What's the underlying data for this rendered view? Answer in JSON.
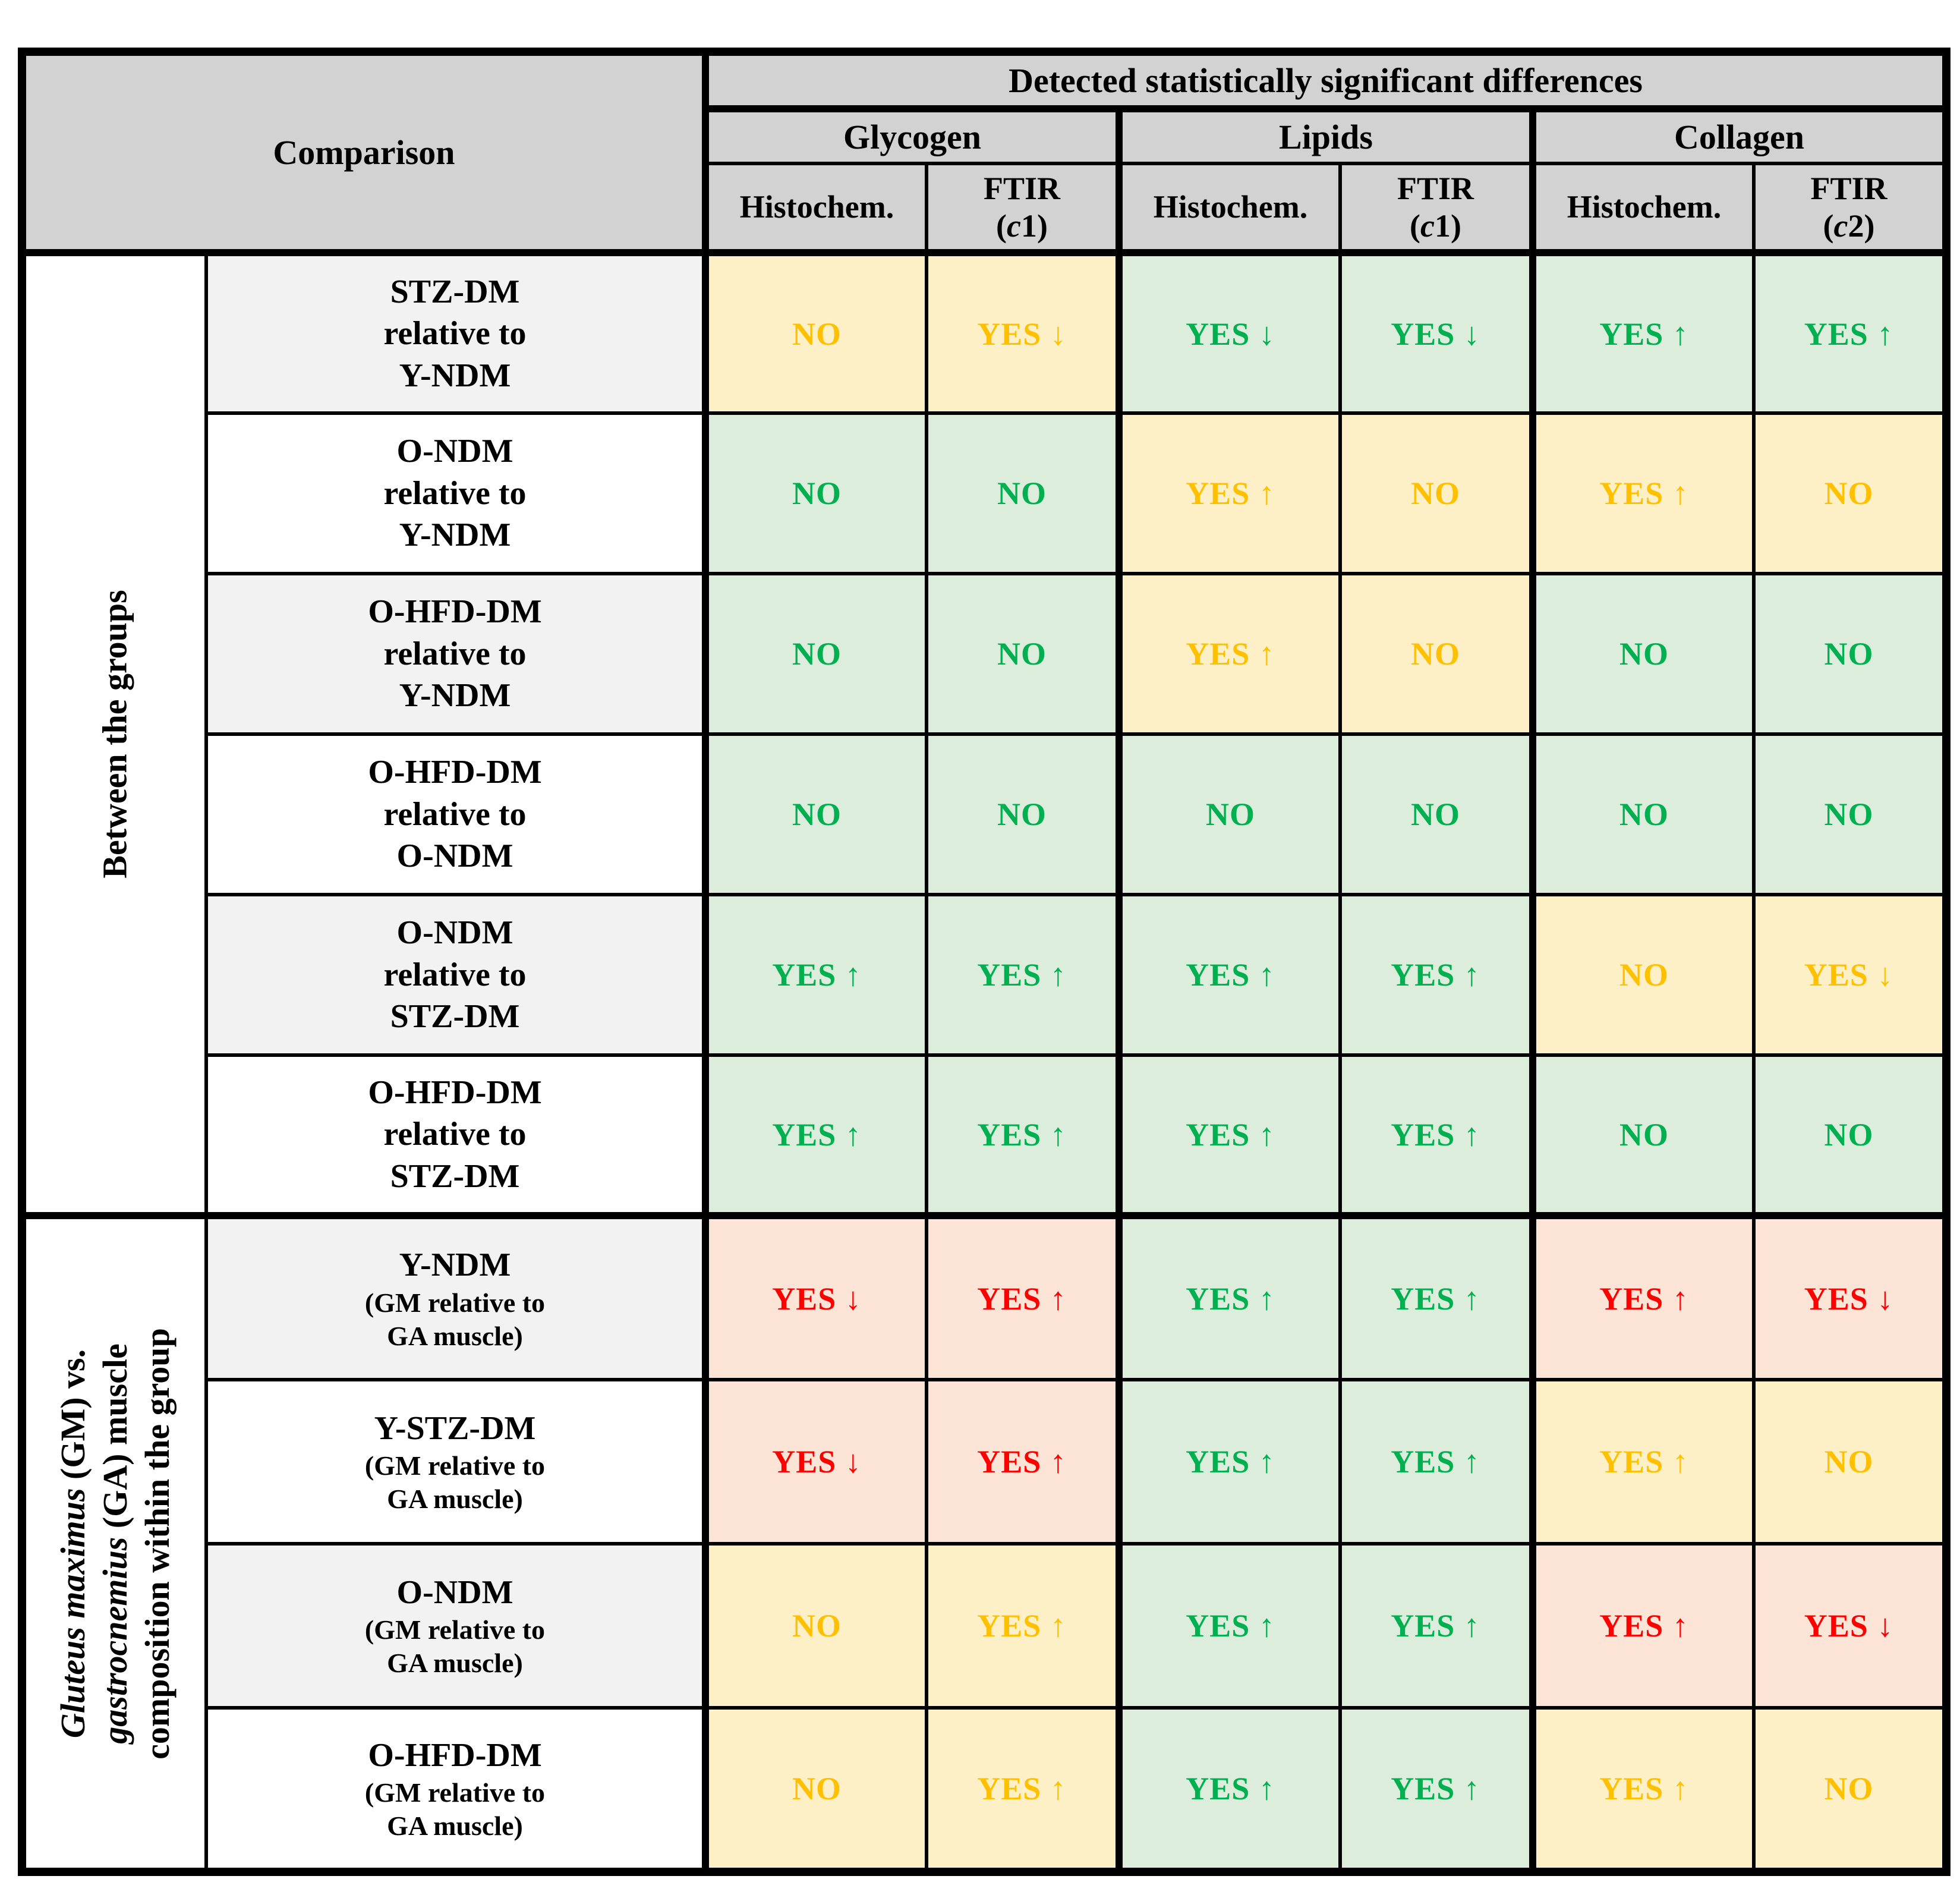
{
  "colors": {
    "good_bg": "#dceedb",
    "good_text": "#00b050",
    "warn_bg": "#fdf0c7",
    "warn_text": "#ffc000",
    "bad_bg": "#fce4d6",
    "bad_text": "#ff0000",
    "header_bg": "#d2d2d2",
    "label_shade_bg": "#f2f2f2",
    "border": "#000000"
  },
  "header": {
    "comparison_label": "Comparison",
    "detected_label": "Detected statistically significant differences",
    "analyte_groups": [
      "Glycogen",
      "Lipids",
      "Collagen"
    ],
    "method_columns": [
      {
        "name": "Histochem."
      },
      {
        "name": "FTIR",
        "sub_open": "(",
        "sub_var": "c",
        "sub_close": "1)"
      },
      {
        "name": "Histochem."
      },
      {
        "name": "FTIR",
        "sub_open": "(",
        "sub_var": "c",
        "sub_close": "1)"
      },
      {
        "name": "Histochem."
      },
      {
        "name": "FTIR",
        "sub_open": "(",
        "sub_var": "c",
        "sub_close": "2)"
      }
    ]
  },
  "row_groups": [
    {
      "group_id": "between-groups",
      "label_lines": [
        {
          "italic": "",
          "rest": "Between the groups"
        }
      ],
      "rows": [
        {
          "label": "STZ-DM\nrelative to\nY-NDM",
          "sub": "",
          "cells": [
            {
              "v": "NO",
              "s": "warn"
            },
            {
              "v": "YES ↓",
              "s": "warn"
            },
            {
              "v": "YES ↓",
              "s": "good"
            },
            {
              "v": "YES ↓",
              "s": "good"
            },
            {
              "v": "YES ↑",
              "s": "good"
            },
            {
              "v": "YES ↑",
              "s": "good"
            }
          ]
        },
        {
          "label": "O-NDM\nrelative to\nY-NDM",
          "sub": "",
          "cells": [
            {
              "v": "NO",
              "s": "good"
            },
            {
              "v": "NO",
              "s": "good"
            },
            {
              "v": "YES ↑",
              "s": "warn"
            },
            {
              "v": "NO",
              "s": "warn"
            },
            {
              "v": "YES ↑",
              "s": "warn"
            },
            {
              "v": "NO",
              "s": "warn"
            }
          ]
        },
        {
          "label": "O-HFD-DM\nrelative to\nY-NDM",
          "sub": "",
          "cells": [
            {
              "v": "NO",
              "s": "good"
            },
            {
              "v": "NO",
              "s": "good"
            },
            {
              "v": "YES ↑",
              "s": "warn"
            },
            {
              "v": "NO",
              "s": "warn"
            },
            {
              "v": "NO",
              "s": "good"
            },
            {
              "v": "NO",
              "s": "good"
            }
          ]
        },
        {
          "label": "O-HFD-DM\nrelative to\nO-NDM",
          "sub": "",
          "cells": [
            {
              "v": "NO",
              "s": "good"
            },
            {
              "v": "NO",
              "s": "good"
            },
            {
              "v": "NO",
              "s": "good"
            },
            {
              "v": "NO",
              "s": "good"
            },
            {
              "v": "NO",
              "s": "good"
            },
            {
              "v": "NO",
              "s": "good"
            }
          ]
        },
        {
          "label": "O-NDM\nrelative to\nSTZ-DM",
          "sub": "",
          "cells": [
            {
              "v": "YES ↑",
              "s": "good"
            },
            {
              "v": "YES ↑",
              "s": "good"
            },
            {
              "v": "YES ↑",
              "s": "good"
            },
            {
              "v": "YES ↑",
              "s": "good"
            },
            {
              "v": "NO",
              "s": "warn"
            },
            {
              "v": "YES ↓",
              "s": "warn"
            }
          ]
        },
        {
          "label": "O-HFD-DM\nrelative to\nSTZ-DM",
          "sub": "",
          "cells": [
            {
              "v": "YES ↑",
              "s": "good"
            },
            {
              "v": "YES ↑",
              "s": "good"
            },
            {
              "v": "YES ↑",
              "s": "good"
            },
            {
              "v": "YES ↑",
              "s": "good"
            },
            {
              "v": "NO",
              "s": "good"
            },
            {
              "v": "NO",
              "s": "good"
            }
          ]
        }
      ]
    },
    {
      "group_id": "gm-vs-ga",
      "label_lines": [
        {
          "italic": "Gluteus maximus",
          "rest": " (GM) vs."
        },
        {
          "italic": "gastrocnemius",
          "rest": " (GA) muscle"
        },
        {
          "italic": "",
          "rest": "composition within the group"
        }
      ],
      "rows": [
        {
          "label": "Y-NDM",
          "sub": "(GM relative to\nGA muscle)",
          "cells": [
            {
              "v": "YES ↓",
              "s": "bad"
            },
            {
              "v": "YES ↑",
              "s": "bad"
            },
            {
              "v": "YES ↑",
              "s": "good"
            },
            {
              "v": "YES ↑",
              "s": "good"
            },
            {
              "v": "YES ↑",
              "s": "bad"
            },
            {
              "v": "YES ↓",
              "s": "bad"
            }
          ]
        },
        {
          "label": "Y-STZ-DM",
          "sub": "(GM relative to\nGA muscle)",
          "cells": [
            {
              "v": "YES ↓",
              "s": "bad"
            },
            {
              "v": "YES ↑",
              "s": "bad"
            },
            {
              "v": "YES ↑",
              "s": "good"
            },
            {
              "v": "YES ↑",
              "s": "good"
            },
            {
              "v": "YES ↑",
              "s": "warn"
            },
            {
              "v": "NO",
              "s": "warn"
            }
          ]
        },
        {
          "label": "O-NDM",
          "sub": "(GM relative to\nGA muscle)",
          "cells": [
            {
              "v": "NO",
              "s": "warn"
            },
            {
              "v": "YES ↑",
              "s": "warn"
            },
            {
              "v": "YES ↑",
              "s": "good"
            },
            {
              "v": "YES ↑",
              "s": "good"
            },
            {
              "v": "YES ↑",
              "s": "bad"
            },
            {
              "v": "YES ↓",
              "s": "bad"
            }
          ]
        },
        {
          "label": "O-HFD-DM",
          "sub": "(GM relative to\nGA muscle)",
          "cells": [
            {
              "v": "NO",
              "s": "warn"
            },
            {
              "v": "YES ↑",
              "s": "warn"
            },
            {
              "v": "YES ↑",
              "s": "good"
            },
            {
              "v": "YES ↑",
              "s": "good"
            },
            {
              "v": "YES ↑",
              "s": "warn"
            },
            {
              "v": "NO",
              "s": "warn"
            }
          ]
        }
      ]
    }
  ]
}
